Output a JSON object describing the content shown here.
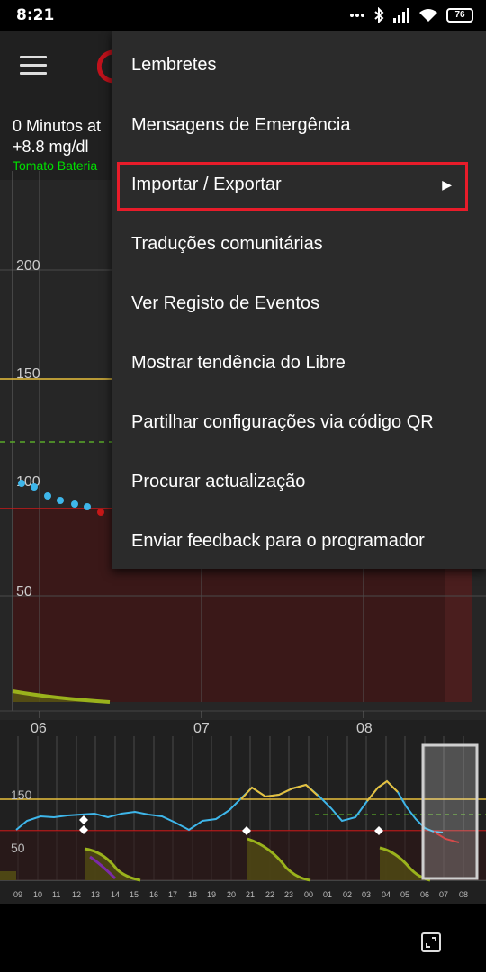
{
  "status_bar": {
    "time": "8:21",
    "battery_level": "76",
    "icons": [
      "more-dots-icon",
      "bluetooth-icon",
      "signal-icon",
      "wifi-icon",
      "battery-icon"
    ]
  },
  "header": {
    "menu_icon": "hamburger-icon",
    "logo_icon": "app-logo-icon"
  },
  "info": {
    "minutes_ago": "0 Minutos at",
    "delta": "+8.8 mg/dl",
    "battery": "Tomato Bateria"
  },
  "main_chart": {
    "y_ticks": [
      "200",
      "150",
      "100",
      "50"
    ],
    "x_ticks": [
      "06",
      "07",
      "08"
    ],
    "high_line": 150,
    "low_line": 90,
    "target_line": 122,
    "colors": {
      "high": "#e8c03c",
      "low": "#c81818",
      "target": "#58a828",
      "in_range": "#3eb6ea",
      "low_point": "#c81818"
    }
  },
  "preview_chart": {
    "y_ticks": [
      "150",
      "50"
    ],
    "x_ticks": [
      "09",
      "10",
      "11",
      "12",
      "13",
      "14",
      "15",
      "16",
      "17",
      "18",
      "19",
      "20",
      "21",
      "22",
      "23",
      "00",
      "01",
      "02",
      "03",
      "04",
      "05",
      "06",
      "07",
      "08"
    ]
  },
  "menu": {
    "items": [
      {
        "label": "Lembretes"
      },
      {
        "label": "Mensagens de Emergência"
      },
      {
        "label": "Importar / Exportar",
        "has_submenu": true
      },
      {
        "label": "Traduções comunitárias"
      },
      {
        "label": "Ver Registo de Eventos"
      },
      {
        "label": "Mostrar tendência do Libre"
      },
      {
        "label": "Partilhar configurações via código QR"
      },
      {
        "label": "Procurar actualização"
      },
      {
        "label": "Enviar feedback para o programador"
      }
    ],
    "submenu_icon": "triangle-right-icon",
    "highlight_color": "#e81c2a"
  },
  "nav_bar": {
    "icon": "rotate-screen-icon"
  }
}
